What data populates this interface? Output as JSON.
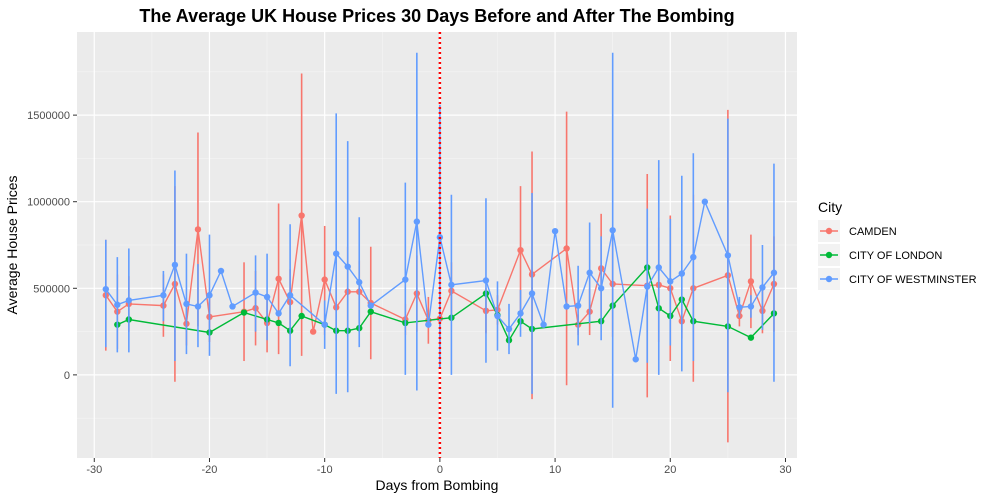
{
  "chart_data": {
    "type": "line",
    "title": "The Average UK House Prices 30 Days Before and After The Bombing",
    "xlabel": "Days from Bombing",
    "ylabel": "Average House Prices",
    "xlim": [
      -31.5,
      31
    ],
    "ylim": [
      -480000,
      1980000
    ],
    "xticks": [
      -30,
      -20,
      -10,
      0,
      10,
      20,
      30
    ],
    "yticks": [
      0,
      500000,
      1000000,
      1500000
    ],
    "xtick_labels": [
      "-30",
      "-20",
      "-10",
      "0",
      "10",
      "20",
      "30"
    ],
    "ytick_labels": [
      "0",
      "500000",
      "1000000",
      "1500000"
    ],
    "grid": true,
    "legend_position": "right",
    "legend_title": "City",
    "reference_line": {
      "x": 0,
      "color": "#ff0000",
      "style": "dotted"
    },
    "series": [
      {
        "name": "CAMDEN",
        "color": "#F8766D",
        "points": [
          {
            "x": -29,
            "y": 460000,
            "lo": 140000,
            "hi": 780000
          },
          {
            "x": -28,
            "y": 365000,
            "lo": 150000,
            "hi": 580000
          },
          {
            "x": -27,
            "y": 410000,
            "lo": 250000,
            "hi": 570000
          },
          {
            "x": -24,
            "y": 400000,
            "lo": 220000,
            "hi": 580000
          },
          {
            "x": -23,
            "y": 525000,
            "lo": -40000,
            "hi": 1090000
          },
          {
            "x": -22,
            "y": 295000,
            "lo": 170000,
            "hi": 420000
          },
          {
            "x": -21,
            "y": 840000,
            "lo": 280000,
            "hi": 1400000
          },
          {
            "x": -20,
            "y": 335000,
            "lo": 190000,
            "hi": 480000
          },
          {
            "x": -17,
            "y": 365000,
            "lo": 80000,
            "hi": 650000
          },
          {
            "x": -16,
            "y": 385000,
            "lo": 170000,
            "hi": 600000
          },
          {
            "x": -15,
            "y": 300000,
            "lo": 130000,
            "hi": 470000
          },
          {
            "x": -14,
            "y": 555000,
            "lo": 120000,
            "hi": 990000
          },
          {
            "x": -13,
            "y": 420000,
            "lo": 230000,
            "hi": 610000
          },
          {
            "x": -12,
            "y": 920000,
            "lo": 110000,
            "hi": 1740000
          },
          {
            "x": -11,
            "y": 250000,
            "lo": 250000,
            "hi": 250000
          },
          {
            "x": -10,
            "y": 550000,
            "lo": 230000,
            "hi": 860000
          },
          {
            "x": -9,
            "y": 390000,
            "lo": 200000,
            "hi": 580000
          },
          {
            "x": -8,
            "y": 480000,
            "lo": 220000,
            "hi": 740000
          },
          {
            "x": -7,
            "y": 480000,
            "lo": 300000,
            "hi": 660000
          },
          {
            "x": -6,
            "y": 415000,
            "lo": 90000,
            "hi": 740000
          },
          {
            "x": -3,
            "y": 320000,
            "lo": 230000,
            "hi": 410000
          },
          {
            "x": -2,
            "y": 470000,
            "lo": 250000,
            "hi": 690000
          },
          {
            "x": -1,
            "y": 315000,
            "lo": 180000,
            "hi": 450000
          },
          {
            "x": 0,
            "y": 325000,
            "lo": 170000,
            "hi": 480000
          },
          {
            "x": 1,
            "y": 485000,
            "lo": 320000,
            "hi": 650000
          },
          {
            "x": 4,
            "y": 370000,
            "lo": 240000,
            "hi": 500000
          },
          {
            "x": 5,
            "y": 375000,
            "lo": 290000,
            "hi": 460000
          },
          {
            "x": 7,
            "y": 720000,
            "lo": 350000,
            "hi": 1090000
          },
          {
            "x": 8,
            "y": 580000,
            "lo": -140000,
            "hi": 1290000
          },
          {
            "x": 11,
            "y": 730000,
            "lo": -60000,
            "hi": 1520000
          },
          {
            "x": 12,
            "y": 290000,
            "lo": 230000,
            "hi": 350000
          },
          {
            "x": 13,
            "y": 365000,
            "lo": 230000,
            "hi": 500000
          },
          {
            "x": 14,
            "y": 615000,
            "lo": 300000,
            "hi": 930000
          },
          {
            "x": 15,
            "y": 525000,
            "lo": 220000,
            "hi": 830000
          },
          {
            "x": 18,
            "y": 515000,
            "lo": -130000,
            "hi": 1160000
          },
          {
            "x": 19,
            "y": 520000,
            "lo": 190000,
            "hi": 850000
          },
          {
            "x": 20,
            "y": 500000,
            "lo": 80000,
            "hi": 920000
          },
          {
            "x": 21,
            "y": 310000,
            "lo": 210000,
            "hi": 410000
          },
          {
            "x": 22,
            "y": 500000,
            "lo": -40000,
            "hi": 1040000
          },
          {
            "x": 25,
            "y": 575000,
            "lo": -390000,
            "hi": 1530000
          },
          {
            "x": 26,
            "y": 340000,
            "lo": 280000,
            "hi": 400000
          },
          {
            "x": 27,
            "y": 540000,
            "lo": 270000,
            "hi": 810000
          },
          {
            "x": 28,
            "y": 370000,
            "lo": 240000,
            "hi": 500000
          },
          {
            "x": 29,
            "y": 525000,
            "lo": 250000,
            "hi": 800000
          }
        ]
      },
      {
        "name": "CITY OF LONDON",
        "color": "#00BA38",
        "points": [
          {
            "x": -28,
            "y": 290000,
            "lo": 290000,
            "hi": 290000
          },
          {
            "x": -27,
            "y": 320000,
            "lo": 320000,
            "hi": 320000
          },
          {
            "x": -20,
            "y": 245000,
            "lo": 245000,
            "hi": 245000
          },
          {
            "x": -17,
            "y": 360000,
            "lo": 360000,
            "hi": 360000
          },
          {
            "x": -15,
            "y": 320000,
            "lo": 320000,
            "hi": 320000
          },
          {
            "x": -14,
            "y": 300000,
            "lo": 300000,
            "hi": 300000
          },
          {
            "x": -13,
            "y": 255000,
            "lo": 255000,
            "hi": 255000
          },
          {
            "x": -12,
            "y": 340000,
            "lo": 340000,
            "hi": 340000
          },
          {
            "x": -10,
            "y": 290000,
            "lo": 290000,
            "hi": 290000
          },
          {
            "x": -9,
            "y": 255000,
            "lo": 255000,
            "hi": 255000
          },
          {
            "x": -8,
            "y": 255000,
            "lo": 255000,
            "hi": 255000
          },
          {
            "x": -7,
            "y": 270000,
            "lo": 270000,
            "hi": 270000
          },
          {
            "x": -6,
            "y": 365000,
            "lo": 365000,
            "hi": 365000
          },
          {
            "x": -3,
            "y": 300000,
            "lo": 300000,
            "hi": 300000
          },
          {
            "x": 1,
            "y": 330000,
            "lo": 330000,
            "hi": 330000
          },
          {
            "x": 4,
            "y": 470000,
            "lo": 470000,
            "hi": 470000
          },
          {
            "x": 5,
            "y": 345000,
            "lo": 345000,
            "hi": 345000
          },
          {
            "x": 6,
            "y": 200000,
            "lo": 200000,
            "hi": 200000
          },
          {
            "x": 7,
            "y": 310000,
            "lo": 310000,
            "hi": 310000
          },
          {
            "x": 8,
            "y": 265000,
            "lo": 265000,
            "hi": 265000
          },
          {
            "x": 14,
            "y": 310000,
            "lo": 310000,
            "hi": 310000
          },
          {
            "x": 15,
            "y": 400000,
            "lo": 400000,
            "hi": 400000
          },
          {
            "x": 18,
            "y": 620000,
            "lo": 620000,
            "hi": 620000
          },
          {
            "x": 19,
            "y": 385000,
            "lo": 385000,
            "hi": 385000
          },
          {
            "x": 20,
            "y": 340000,
            "lo": 340000,
            "hi": 340000
          },
          {
            "x": 21,
            "y": 435000,
            "lo": 435000,
            "hi": 435000
          },
          {
            "x": 22,
            "y": 310000,
            "lo": 310000,
            "hi": 310000
          },
          {
            "x": 25,
            "y": 280000,
            "lo": 280000,
            "hi": 280000
          },
          {
            "x": 27,
            "y": 215000,
            "lo": 215000,
            "hi": 215000
          },
          {
            "x": 29,
            "y": 355000,
            "lo": 355000,
            "hi": 355000
          }
        ]
      },
      {
        "name": "CITY OF WESTMINSTER",
        "color": "#619CFF",
        "points": [
          {
            "x": -29,
            "y": 495000,
            "lo": 160000,
            "hi": 780000
          },
          {
            "x": -28,
            "y": 405000,
            "lo": 130000,
            "hi": 680000
          },
          {
            "x": -27,
            "y": 430000,
            "lo": 130000,
            "hi": 730000
          },
          {
            "x": -24,
            "y": 460000,
            "lo": 310000,
            "hi": 600000
          },
          {
            "x": -23,
            "y": 635000,
            "lo": 80000,
            "hi": 1180000
          },
          {
            "x": -22,
            "y": 410000,
            "lo": 120000,
            "hi": 700000
          },
          {
            "x": -21,
            "y": 395000,
            "lo": 160000,
            "hi": 640000
          },
          {
            "x": -20,
            "y": 460000,
            "lo": 110000,
            "hi": 810000
          },
          {
            "x": -19,
            "y": 600000,
            "lo": 600000,
            "hi": 600000
          },
          {
            "x": -18,
            "y": 395000,
            "lo": 395000,
            "hi": 395000
          },
          {
            "x": -16,
            "y": 475000,
            "lo": 250000,
            "hi": 690000
          },
          {
            "x": -15,
            "y": 450000,
            "lo": 200000,
            "hi": 700000
          },
          {
            "x": -14,
            "y": 355000,
            "lo": 355000,
            "hi": 355000
          },
          {
            "x": -13,
            "y": 460000,
            "lo": 50000,
            "hi": 870000
          },
          {
            "x": -10,
            "y": 290000,
            "lo": 150000,
            "hi": 430000
          },
          {
            "x": -9,
            "y": 700000,
            "lo": -110000,
            "hi": 1510000
          },
          {
            "x": -8,
            "y": 625000,
            "lo": -100000,
            "hi": 1350000
          },
          {
            "x": -7,
            "y": 535000,
            "lo": 160000,
            "hi": 910000
          },
          {
            "x": -6,
            "y": 400000,
            "lo": 400000,
            "hi": 400000
          },
          {
            "x": -3,
            "y": 550000,
            "lo": 0,
            "hi": 1110000
          },
          {
            "x": -2,
            "y": 885000,
            "lo": -90000,
            "hi": 1860000
          },
          {
            "x": -1,
            "y": 290000,
            "lo": 290000,
            "hi": 290000
          },
          {
            "x": 0,
            "y": 795000,
            "lo": 40000,
            "hi": 1560000
          },
          {
            "x": 1,
            "y": 520000,
            "lo": 0,
            "hi": 1040000
          },
          {
            "x": 4,
            "y": 545000,
            "lo": 70000,
            "hi": 1020000
          },
          {
            "x": 5,
            "y": 340000,
            "lo": 140000,
            "hi": 540000
          },
          {
            "x": 6,
            "y": 265000,
            "lo": 120000,
            "hi": 410000
          },
          {
            "x": 7,
            "y": 355000,
            "lo": 220000,
            "hi": 490000
          },
          {
            "x": 8,
            "y": 470000,
            "lo": -110000,
            "hi": 1050000
          },
          {
            "x": 9,
            "y": 290000,
            "lo": 290000,
            "hi": 290000
          },
          {
            "x": 10,
            "y": 830000,
            "lo": 830000,
            "hi": 830000
          },
          {
            "x": 11,
            "y": 395000,
            "lo": 395000,
            "hi": 395000
          },
          {
            "x": 12,
            "y": 400000,
            "lo": 170000,
            "hi": 630000
          },
          {
            "x": 13,
            "y": 590000,
            "lo": 300000,
            "hi": 880000
          },
          {
            "x": 14,
            "y": 500000,
            "lo": 200000,
            "hi": 800000
          },
          {
            "x": 15,
            "y": 835000,
            "lo": -190000,
            "hi": 1860000
          },
          {
            "x": 17,
            "y": 90000,
            "lo": 90000,
            "hi": 90000
          },
          {
            "x": 18,
            "y": 510000,
            "lo": 70000,
            "hi": 960000
          },
          {
            "x": 19,
            "y": 620000,
            "lo": 0,
            "hi": 1240000
          },
          {
            "x": 20,
            "y": 540000,
            "lo": 170000,
            "hi": 900000
          },
          {
            "x": 21,
            "y": 585000,
            "lo": 20000,
            "hi": 1150000
          },
          {
            "x": 22,
            "y": 680000,
            "lo": 80000,
            "hi": 1280000
          },
          {
            "x": 23,
            "y": 1000000,
            "lo": 1000000,
            "hi": 1000000
          },
          {
            "x": 25,
            "y": 690000,
            "lo": -100000,
            "hi": 1480000
          },
          {
            "x": 26,
            "y": 390000,
            "lo": 330000,
            "hi": 450000
          },
          {
            "x": 27,
            "y": 395000,
            "lo": 330000,
            "hi": 460000
          },
          {
            "x": 28,
            "y": 505000,
            "lo": 260000,
            "hi": 750000
          },
          {
            "x": 29,
            "y": 590000,
            "lo": -40000,
            "hi": 1220000
          }
        ]
      }
    ]
  }
}
